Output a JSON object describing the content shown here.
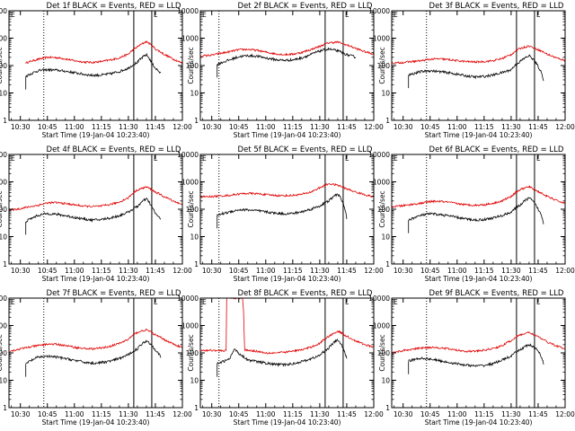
{
  "chart_data": {
    "type": "line",
    "yscale": "log",
    "ylim": [
      1,
      10000
    ],
    "xlim": [
      "10:23:40",
      "12:00:00"
    ],
    "x_tick_labels": [
      "10:30",
      "10:45",
      "11:00",
      "11:15",
      "11:30",
      "11:45",
      "12:00"
    ],
    "x_tick_minutes": [
      630,
      645,
      660,
      675,
      690,
      705,
      720
    ],
    "y_tick_labels": [
      "1",
      "10",
      "100",
      "1000",
      "10000"
    ],
    "ylabel": "Counts/sec",
    "xlabel": "Start Time (19-Jan-04 10:23:40)",
    "vertical_markers": {
      "dotted": "dotted line near data start",
      "solid": [
        "11:33",
        "11:43"
      ]
    },
    "colors": {
      "events": "#000000",
      "lld": "#e00000",
      "axes": "#000000"
    },
    "legend_mark_top_left": "E",
    "legend_mark_right": "L",
    "panels": [
      {
        "title": "Det 1f BLACK = Events, RED = LLD",
        "dotted_minute": 643,
        "events": {
          "x": [
            633,
            640,
            645,
            650,
            655,
            660,
            665,
            670,
            675,
            680,
            685,
            690,
            695,
            700,
            703,
            705,
            708
          ],
          "values": [
            40,
            65,
            70,
            68,
            62,
            55,
            48,
            44,
            45,
            50,
            60,
            80,
            130,
            250,
            120,
            80,
            50
          ]
        },
        "lld": {
          "x": [
            633,
            640,
            645,
            650,
            655,
            660,
            665,
            670,
            675,
            680,
            685,
            690,
            695,
            700,
            705,
            710,
            715,
            720
          ],
          "values": [
            125,
            170,
            200,
            195,
            175,
            150,
            135,
            130,
            140,
            160,
            190,
            260,
            480,
            750,
            400,
            250,
            170,
            120
          ]
        }
      },
      {
        "title": "Det 2f BLACK = Events, RED = LLD",
        "dotted_minute": 634,
        "events": {
          "x": [
            633,
            640,
            645,
            650,
            655,
            660,
            665,
            670,
            675,
            680,
            685,
            690,
            695,
            700,
            705,
            710
          ],
          "values": [
            110,
            160,
            210,
            230,
            220,
            190,
            165,
            155,
            160,
            190,
            250,
            340,
            400,
            340,
            250,
            200
          ]
        },
        "lld": {
          "x": [
            623,
            630,
            640,
            645,
            650,
            655,
            660,
            665,
            670,
            675,
            680,
            685,
            690,
            695,
            700,
            705,
            710,
            715,
            720
          ],
          "values": [
            220,
            240,
            320,
            380,
            390,
            360,
            310,
            270,
            250,
            260,
            300,
            380,
            500,
            680,
            720,
            560,
            420,
            320,
            260
          ]
        }
      },
      {
        "title": "Det 3f BLACK = Events, RED = LLD",
        "dotted_minute": 643,
        "events": {
          "x": [
            633,
            640,
            645,
            650,
            655,
            660,
            665,
            670,
            675,
            680,
            685,
            690,
            695,
            700,
            705,
            708
          ],
          "values": [
            45,
            60,
            65,
            60,
            55,
            48,
            42,
            38,
            40,
            45,
            55,
            70,
            140,
            230,
            90,
            30
          ]
        },
        "lld": {
          "x": [
            623,
            630,
            640,
            645,
            650,
            655,
            660,
            665,
            670,
            675,
            680,
            685,
            690,
            695,
            700,
            705,
            710,
            715,
            720
          ],
          "values": [
            120,
            130,
            150,
            170,
            175,
            165,
            150,
            140,
            135,
            140,
            150,
            180,
            250,
            420,
            520,
            380,
            260,
            190,
            150
          ]
        }
      },
      {
        "title": "Det 4f BLACK = Events, RED = LLD",
        "dotted_minute": 643,
        "events": {
          "x": [
            633,
            640,
            645,
            650,
            655,
            660,
            665,
            670,
            675,
            680,
            685,
            690,
            695,
            700,
            703,
            705,
            708
          ],
          "values": [
            35,
            60,
            70,
            65,
            58,
            50,
            44,
            40,
            42,
            48,
            58,
            78,
            125,
            240,
            120,
            70,
            40
          ]
        },
        "lld": {
          "x": [
            623,
            630,
            640,
            645,
            650,
            655,
            660,
            665,
            670,
            675,
            680,
            685,
            690,
            695,
            700,
            705,
            710,
            715,
            720
          ],
          "values": [
            90,
            105,
            140,
            170,
            175,
            160,
            145,
            130,
            125,
            130,
            150,
            180,
            260,
            500,
            650,
            420,
            280,
            200,
            140
          ]
        }
      },
      {
        "title": "Det 5f BLACK = Events, RED = LLD",
        "dotted_minute": 634,
        "events": {
          "x": [
            633,
            640,
            645,
            650,
            655,
            660,
            665,
            670,
            675,
            680,
            685,
            690,
            695,
            700,
            703,
            705
          ],
          "values": [
            60,
            80,
            95,
            95,
            88,
            80,
            72,
            68,
            70,
            80,
            100,
            130,
            200,
            360,
            160,
            40
          ]
        },
        "lld": {
          "x": [
            623,
            630,
            640,
            645,
            650,
            655,
            660,
            665,
            670,
            675,
            680,
            685,
            690,
            695,
            700,
            705,
            710,
            715,
            720
          ],
          "values": [
            280,
            290,
            320,
            360,
            380,
            370,
            340,
            320,
            310,
            320,
            350,
            420,
            600,
            850,
            750,
            550,
            420,
            340,
            280
          ]
        }
      },
      {
        "title": "Det 6f BLACK = Events, RED = LLD",
        "dotted_minute": 643,
        "events": {
          "x": [
            633,
            640,
            645,
            650,
            655,
            660,
            665,
            670,
            675,
            680,
            685,
            690,
            695,
            700,
            705,
            708
          ],
          "values": [
            40,
            60,
            68,
            64,
            58,
            50,
            44,
            40,
            42,
            48,
            58,
            78,
            140,
            260,
            100,
            30
          ]
        },
        "lld": {
          "x": [
            623,
            630,
            640,
            645,
            650,
            655,
            660,
            665,
            670,
            675,
            680,
            685,
            690,
            695,
            700,
            705,
            710,
            715,
            720
          ],
          "values": [
            120,
            135,
            165,
            190,
            195,
            180,
            160,
            145,
            140,
            145,
            165,
            200,
            290,
            520,
            660,
            440,
            290,
            210,
            160
          ]
        }
      },
      {
        "title": "Det 7f BLACK = Events, RED = LLD",
        "dotted_minute": 643,
        "events": {
          "x": [
            633,
            640,
            645,
            650,
            655,
            660,
            665,
            670,
            675,
            680,
            685,
            690,
            695,
            700,
            705,
            708
          ],
          "values": [
            40,
            70,
            75,
            70,
            62,
            54,
            46,
            42,
            44,
            50,
            62,
            85,
            140,
            280,
            130,
            70
          ]
        },
        "lld": {
          "x": [
            623,
            630,
            640,
            645,
            650,
            655,
            660,
            665,
            670,
            675,
            680,
            685,
            690,
            695,
            700,
            705,
            710,
            715,
            720
          ],
          "values": [
            110,
            140,
            185,
            210,
            205,
            185,
            160,
            145,
            140,
            150,
            175,
            220,
            310,
            560,
            700,
            450,
            300,
            210,
            150
          ]
        }
      },
      {
        "title": "Det 8f BLACK = Events, RED = LLD",
        "dotted_minute": 634,
        "events": {
          "x": [
            633,
            637,
            640,
            643,
            645,
            650,
            655,
            660,
            665,
            670,
            675,
            680,
            685,
            690,
            695,
            700,
            703,
            705
          ],
          "values": [
            40,
            50,
            60,
            140,
            95,
            55,
            48,
            42,
            38,
            37,
            40,
            48,
            60,
            80,
            150,
            300,
            140,
            60
          ]
        },
        "lld": {
          "x": [
            623,
            630,
            637,
            638,
            638.3,
            640,
            643,
            647,
            648,
            648.3,
            650,
            655,
            660,
            665,
            670,
            675,
            680,
            685,
            690,
            695,
            700,
            705,
            710,
            715,
            720
          ],
          "values": [
            120,
            125,
            120,
            130,
            10000,
            10000,
            10000,
            10000,
            130,
            130,
            125,
            115,
            100,
            100,
            105,
            115,
            130,
            160,
            220,
            400,
            620,
            400,
            270,
            200,
            160
          ]
        }
      },
      {
        "title": "Det 9f BLACK = Events, RED = LLD",
        "dotted_minute": 643,
        "events": {
          "x": [
            633,
            640,
            645,
            650,
            655,
            660,
            665,
            670,
            675,
            680,
            685,
            690,
            695,
            700,
            705,
            708
          ],
          "values": [
            50,
            65,
            60,
            52,
            45,
            40,
            36,
            33,
            35,
            40,
            55,
            75,
            130,
            200,
            120,
            40
          ]
        },
        "lld": {
          "x": [
            623,
            630,
            640,
            645,
            650,
            655,
            660,
            665,
            670,
            675,
            680,
            685,
            690,
            695,
            700,
            705,
            710,
            715,
            720
          ],
          "values": [
            100,
            120,
            150,
            160,
            155,
            140,
            125,
            115,
            115,
            125,
            145,
            180,
            280,
            450,
            560,
            380,
            250,
            180,
            140
          ]
        }
      }
    ]
  }
}
